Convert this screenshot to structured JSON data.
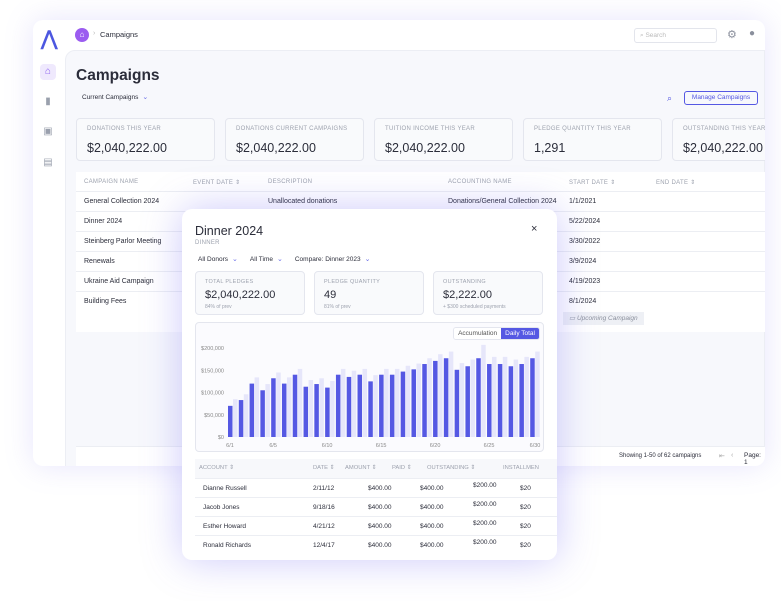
{
  "app": {
    "breadcrumb": "Campaigns",
    "search_placeholder": "Search"
  },
  "page": {
    "title": "Campaigns",
    "filter": "Current Campaigns",
    "manage_label": "Manage Campaigns"
  },
  "stats": [
    {
      "label": "Donations this year",
      "value": "$2,040,222.00"
    },
    {
      "label": "Donations current campaigns",
      "value": "$2,040,222.00"
    },
    {
      "label": "Tuition income this year",
      "value": "$2,040,222.00"
    },
    {
      "label": "Pledge quantity this year",
      "value": "1,291"
    },
    {
      "label": "Outstanding this year",
      "value": "$2,040,222.00"
    }
  ],
  "table": {
    "headers": [
      "Campaign Name",
      "Event Date ⇕",
      "Description",
      "Accounting Name",
      "Start Date ⇕",
      "End Date ⇕"
    ],
    "rows": [
      {
        "name": "General Collection 2024",
        "description": "Unallocated donations",
        "accounting": "Donations/General Collection 2024",
        "start": "1/1/2021"
      },
      {
        "name": "Dinner 2024",
        "start": "5/22/2024"
      },
      {
        "name": "Steinberg Parlor Meeting",
        "start": "3/30/2022"
      },
      {
        "name": "Renewals",
        "start": "3/9/2024"
      },
      {
        "name": "Ukraine Aid Campaign",
        "start": "4/19/2023"
      },
      {
        "name": "Building Fees",
        "start": "8/1/2024",
        "badge": "Upcoming Campaign"
      }
    ],
    "footer": "Showing 1-50 of 62 campaigns",
    "page_label": "Page: 1"
  },
  "modal": {
    "title": "Dinner 2024",
    "subtitle": "DINNER",
    "filters": [
      "All Donors",
      "All Time",
      "Compare: Dinner 2023"
    ],
    "cards": [
      {
        "label": "Total Pledges",
        "value": "$2,040,222.00",
        "sub": "84% of prev"
      },
      {
        "label": "Pledge Quantity",
        "value": "49",
        "sub": "81% of prev"
      },
      {
        "label": "Outstanding",
        "value": "$2,222.00",
        "sub": "+ $300 scheduled payments"
      }
    ],
    "toggle": [
      "Accumulation",
      "Daily Total"
    ],
    "active_toggle": "Daily Total",
    "table": {
      "headers": [
        "ACCOUNT ⇕",
        "DATE ⇕",
        "AMOUNT ⇕",
        "PAID ⇕",
        "OUTSTANDING ⇕",
        "INSTALLMEN"
      ],
      "rows": [
        [
          "Dianne Russell",
          "2/11/12",
          "$400.00",
          "$400.00",
          "$200.00",
          "$20"
        ],
        [
          "Jacob Jones",
          "9/18/16",
          "$400.00",
          "$400.00",
          "$200.00",
          "$20"
        ],
        [
          "Esther Howard",
          "4/21/12",
          "$400.00",
          "$400.00",
          "$200.00",
          "$20"
        ],
        [
          "Ronald Richards",
          "12/4/17",
          "$400.00",
          "$400.00",
          "$200.00",
          "$20"
        ]
      ]
    }
  },
  "chart_data": {
    "type": "bar",
    "categories": [
      "6/1",
      "6/2",
      "6/3",
      "6/4",
      "6/5",
      "6/6",
      "6/7",
      "6/8",
      "6/9",
      "6/10",
      "6/11",
      "6/12",
      "6/13",
      "6/14",
      "6/15",
      "6/16",
      "6/17",
      "6/18",
      "6/19",
      "6/20",
      "6/21",
      "6/22",
      "6/23",
      "6/24",
      "6/25",
      "6/26",
      "6/27",
      "6/28",
      "6/29"
    ],
    "x_tick_labels": [
      "6/1",
      "6/5",
      "6/10",
      "6/15",
      "6/20",
      "6/25",
      "6/30"
    ],
    "y_tick_labels": [
      "$200,000",
      "$150,000",
      "$100,000",
      "$50,000",
      "$0"
    ],
    "ylim": [
      0,
      200000
    ],
    "series": [
      {
        "values": [
          70000,
          83000,
          120000,
          105000,
          132000,
          120000,
          140000,
          113000,
          119000,
          111000,
          140000,
          135000,
          140000,
          125000,
          140000,
          140000,
          147000,
          152000,
          164000,
          171000,
          177000,
          151000,
          159000,
          177000,
          164000,
          164000,
          159000,
          164000,
          177000
        ],
        "color": "#5558e3"
      },
      {
        "values": [
          85000,
          96000,
          134000,
          119000,
          145000,
          134000,
          153000,
          128000,
          132000,
          126000,
          153000,
          149000,
          153000,
          139000,
          153000,
          153000,
          160000,
          165000,
          177000,
          186000,
          192000,
          166000,
          174000,
          207000,
          180000,
          180000,
          174000,
          180000,
          192000
        ],
        "color": "#e6e6fa"
      }
    ]
  }
}
